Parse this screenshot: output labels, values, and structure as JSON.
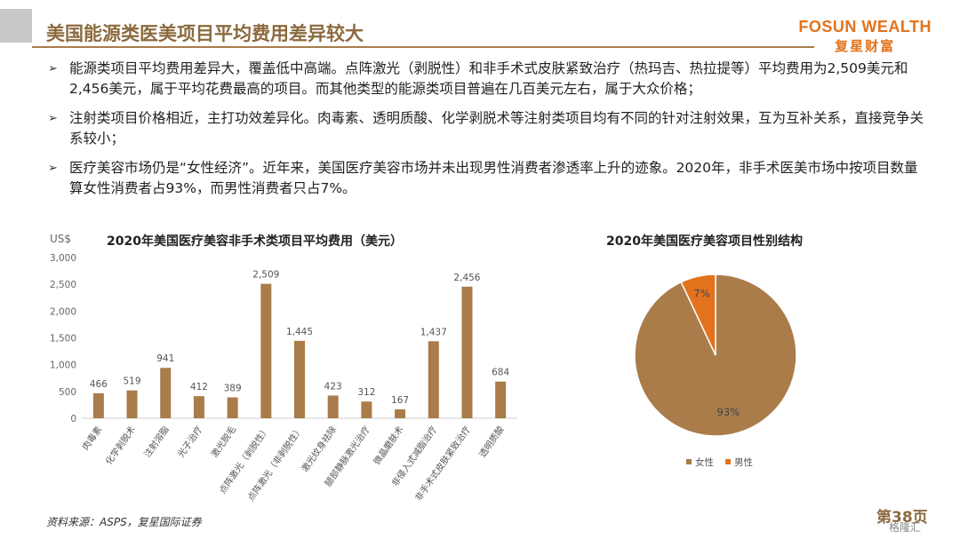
{
  "page": {
    "title": "美国能源类医美项目平均费用差异较大",
    "logo_en": "FOSUN WEALTH",
    "logo_zh": "复星财富",
    "source": "资料来源：ASPS，复星国际证券",
    "page_number": "第38页",
    "watermark": "格隆汇"
  },
  "bullets": [
    "能源类项目平均费用差异大，覆盖低中高端。点阵激光（剥脱性）和非手术式皮肤紧致治疗（热玛吉、热拉提等）平均费用为2,509美元和2,456美元，属于平均花费最高的项目。而其他类型的能源类项目普遍在几百美元左右，属于大众价格；",
    "注射类项目价格相近，主打功效差异化。肉毒素、透明质酸、化学剥脱术等注射类项目均有不同的针对注射效果，互为互补关系，直接竞争关系较小；",
    "医疗美容市场仍是“女性经济”。近年来，美国医疗美容市场并未出现男性消费者渗透率上升的迹象。2020年，非手术医美市场中按项目数量算女性消费者占93%，而男性消费者只占7%。"
  ],
  "chart_data": [
    {
      "type": "bar",
      "title": "2020年美国医疗美容非手术类项目平均费用（美元）",
      "ylabel": "US$",
      "categories": [
        "肉毒素",
        "化学剥脱术",
        "注射溶脂",
        "光子治疗",
        "激光脱毛",
        "点阵激光（剥脱性）",
        "点阵激光（非剥脱性）",
        "激光纹身祛除",
        "腿部静脉激光治疗",
        "微晶磨肤术",
        "非侵入式减脂治疗",
        "非手术式皮肤紧致治疗",
        "透明质酸"
      ],
      "values": [
        466,
        519,
        941,
        412,
        389,
        2509,
        1445,
        423,
        312,
        167,
        1437,
        2456,
        684
      ],
      "value_labels": [
        "466",
        "519",
        "941",
        "412",
        "389",
        "2,509",
        "1,445",
        "423",
        "312",
        "167",
        "1,437",
        "2,456",
        "684"
      ],
      "yticks": [
        "0",
        "500",
        "1,000",
        "1,500",
        "2,000",
        "2,500",
        "3,000"
      ],
      "ylim": [
        0,
        3000
      ],
      "color": "#a97c4a"
    },
    {
      "type": "pie",
      "title": "2020年美国医疗美容项目性别结构",
      "slices": [
        {
          "label": "女性",
          "value": 93,
          "value_label": "93%",
          "color": "#a97c4a"
        },
        {
          "label": "男性",
          "value": 7,
          "value_label": "7%",
          "color": "#e2731c"
        }
      ],
      "legend_position": "bottom"
    }
  ]
}
